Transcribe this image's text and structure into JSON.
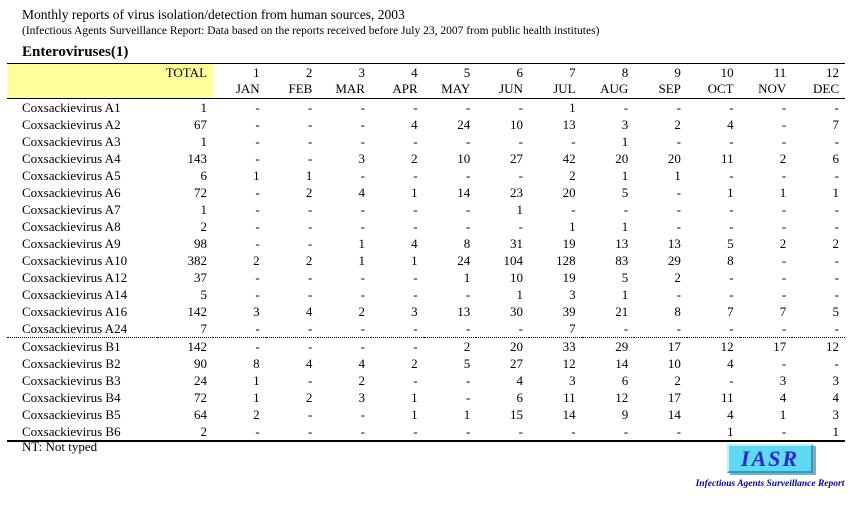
{
  "header": {
    "title": "Monthly reports of virus isolation/detection from human sources, 2003",
    "subtitle": "(Infectious Agents Surveillance Report: Data based on the reports received before July 23, 2007 from public health institutes)",
    "section": "Enteroviruses(1)"
  },
  "table": {
    "total_label": "TOTAL",
    "month_numbers": [
      "1",
      "2",
      "3",
      "4",
      "5",
      "6",
      "7",
      "8",
      "9",
      "10",
      "11",
      "12"
    ],
    "month_names": [
      "JAN",
      "FEB",
      "MAR",
      "APR",
      "MAY",
      "JUN",
      "JUL",
      "AUG",
      "SEP",
      "OCT",
      "NOV",
      "DEC"
    ],
    "rows": [
      {
        "name": "Coxsackievirus A1",
        "total": "1",
        "months": [
          "-",
          "-",
          "-",
          "-",
          "-",
          "-",
          "1",
          "-",
          "-",
          "-",
          "-",
          "-"
        ]
      },
      {
        "name": "Coxsackievirus A2",
        "total": "67",
        "months": [
          "-",
          "-",
          "-",
          "4",
          "24",
          "10",
          "13",
          "3",
          "2",
          "4",
          "-",
          "7"
        ]
      },
      {
        "name": "Coxsackievirus A3",
        "total": "1",
        "months": [
          "-",
          "-",
          "-",
          "-",
          "-",
          "-",
          "-",
          "1",
          "-",
          "-",
          "-",
          "-"
        ]
      },
      {
        "name": "Coxsackievirus A4",
        "total": "143",
        "months": [
          "-",
          "-",
          "3",
          "2",
          "10",
          "27",
          "42",
          "20",
          "20",
          "11",
          "2",
          "6"
        ]
      },
      {
        "name": "Coxsackievirus A5",
        "total": "6",
        "months": [
          "1",
          "1",
          "-",
          "-",
          "-",
          "-",
          "2",
          "1",
          "1",
          "-",
          "-",
          "-"
        ]
      },
      {
        "name": "Coxsackievirus A6",
        "total": "72",
        "months": [
          "-",
          "2",
          "4",
          "1",
          "14",
          "23",
          "20",
          "5",
          "-",
          "1",
          "1",
          "1"
        ]
      },
      {
        "name": "Coxsackievirus A7",
        "total": "1",
        "months": [
          "-",
          "-",
          "-",
          "-",
          "-",
          "1",
          "-",
          "-",
          "-",
          "-",
          "-",
          "-"
        ]
      },
      {
        "name": "Coxsackievirus A8",
        "total": "2",
        "months": [
          "-",
          "-",
          "-",
          "-",
          "-",
          "-",
          "1",
          "1",
          "-",
          "-",
          "-",
          "-"
        ]
      },
      {
        "name": "Coxsackievirus A9",
        "total": "98",
        "months": [
          "-",
          "-",
          "1",
          "4",
          "8",
          "31",
          "19",
          "13",
          "13",
          "5",
          "2",
          "2"
        ]
      },
      {
        "name": "Coxsackievirus A10",
        "total": "382",
        "months": [
          "2",
          "2",
          "1",
          "1",
          "24",
          "104",
          "128",
          "83",
          "29",
          "8",
          "-",
          "-"
        ]
      },
      {
        "name": "Coxsackievirus A12",
        "total": "37",
        "months": [
          "-",
          "-",
          "-",
          "-",
          "1",
          "10",
          "19",
          "5",
          "2",
          "-",
          "-",
          "-"
        ]
      },
      {
        "name": "Coxsackievirus A14",
        "total": "5",
        "months": [
          "-",
          "-",
          "-",
          "-",
          "-",
          "1",
          "3",
          "1",
          "-",
          "-",
          "-",
          "-"
        ]
      },
      {
        "name": "Coxsackievirus A16",
        "total": "142",
        "months": [
          "3",
          "4",
          "2",
          "3",
          "13",
          "30",
          "39",
          "21",
          "8",
          "7",
          "7",
          "5"
        ]
      },
      {
        "name": "Coxsackievirus A24",
        "total": "7",
        "months": [
          "-",
          "-",
          "-",
          "-",
          "-",
          "-",
          "7",
          "-",
          "-",
          "-",
          "-",
          "-"
        ]
      },
      {
        "name": "Coxsackievirus B1",
        "total": "142",
        "months": [
          "-",
          "-",
          "-",
          "-",
          "2",
          "20",
          "33",
          "29",
          "17",
          "12",
          "17",
          "12"
        ],
        "divider_before": true
      },
      {
        "name": "Coxsackievirus B2",
        "total": "90",
        "months": [
          "8",
          "4",
          "4",
          "2",
          "5",
          "27",
          "12",
          "14",
          "10",
          "4",
          "-",
          "-"
        ]
      },
      {
        "name": "Coxsackievirus B3",
        "total": "24",
        "months": [
          "1",
          "-",
          "2",
          "-",
          "-",
          "4",
          "3",
          "6",
          "2",
          "-",
          "3",
          "3"
        ]
      },
      {
        "name": "Coxsackievirus B4",
        "total": "72",
        "months": [
          "1",
          "2",
          "3",
          "1",
          "-",
          "6",
          "11",
          "12",
          "17",
          "11",
          "4",
          "4"
        ]
      },
      {
        "name": "Coxsackievirus B5",
        "total": "64",
        "months": [
          "2",
          "-",
          "-",
          "1",
          "1",
          "15",
          "14",
          "9",
          "14",
          "4",
          "1",
          "3"
        ]
      },
      {
        "name": "Coxsackievirus B6",
        "total": "2",
        "months": [
          "-",
          "-",
          "-",
          "-",
          "-",
          "-",
          "-",
          "-",
          "-",
          "1",
          "-",
          "1"
        ]
      }
    ]
  },
  "footer": {
    "note": "NT: Not typed"
  },
  "logo": {
    "text": "IASR",
    "subtitle": "Infectious Agents Surveillance Report"
  },
  "colors": {
    "header_band_bg": "#FFFF99",
    "logo_box_bg": "#5FD9F2",
    "logo_text": "#2929CC",
    "logo_subtitle_text": "#0000A0"
  }
}
